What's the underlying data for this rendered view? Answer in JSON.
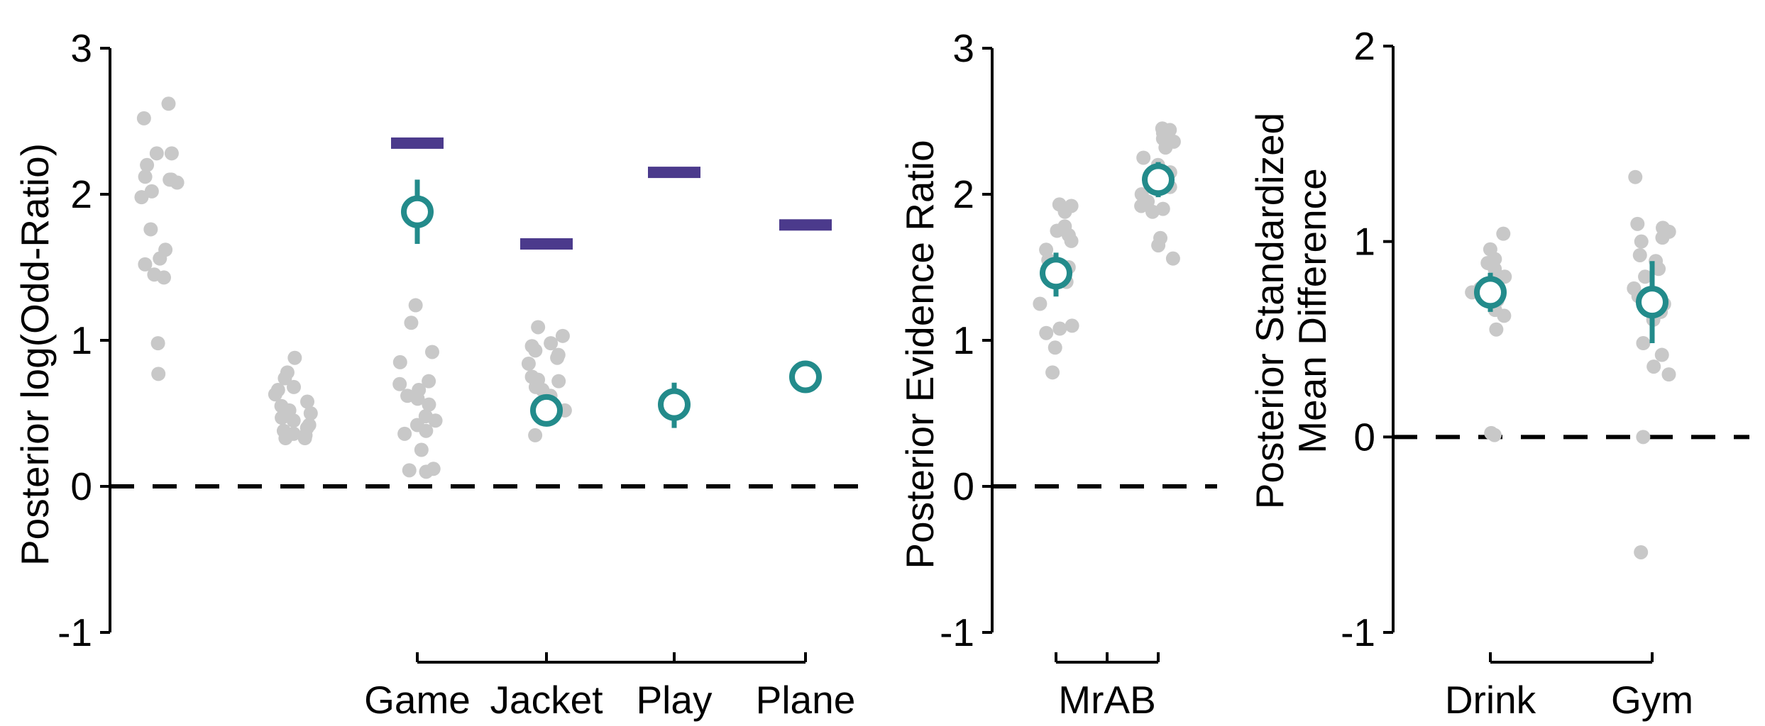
{
  "colors": {
    "individual_points": "#c8c8c8",
    "posterior_mean": "#238b8b",
    "reference_bar": "#4b3a8c",
    "zero_line": "#000000",
    "axis": "#000000"
  },
  "chart_data": [
    {
      "type": "scatter",
      "panel": "odds-ratio",
      "ylabel": "Posterior log(Odd-Ratio)",
      "ylim": [
        -1,
        3
      ],
      "yticks": [
        -1,
        0,
        1,
        2,
        3
      ],
      "ytick_labels": [
        "-1",
        "0",
        "1",
        "2",
        "3"
      ],
      "zero_line": true,
      "categories": [
        {
          "label": "",
          "points": [
            2.62,
            2.52,
            2.28,
            2.28,
            2.2,
            2.1,
            2.12,
            2.08,
            2.02,
            2.1,
            1.98,
            1.76,
            1.62,
            1.56,
            1.52,
            1.45,
            1.43,
            0.98,
            0.77
          ]
        },
        {
          "label": "",
          "points": [
            0.88,
            0.78,
            0.74,
            0.68,
            0.66,
            0.63,
            0.58,
            0.55,
            0.52,
            0.5,
            0.47,
            0.45,
            0.42,
            0.4,
            0.38,
            0.36,
            0.33,
            0.33,
            0.35
          ]
        },
        {
          "label": "Game",
          "points": [
            1.24,
            1.12,
            0.92,
            0.85,
            0.72,
            0.7,
            0.66,
            0.62,
            0.6,
            0.56,
            0.48,
            0.45,
            0.42,
            0.38,
            0.36,
            0.25,
            0.12,
            0.11,
            0.1
          ],
          "mean": 1.88,
          "ci": [
            1.66,
            2.1
          ],
          "reference": 2.35
        },
        {
          "label": "Jacket",
          "points": [
            1.09,
            1.03,
            0.98,
            0.96,
            0.93,
            0.9,
            0.88,
            0.84,
            0.75,
            0.73,
            0.72,
            0.68,
            0.66,
            0.62,
            0.58,
            0.55,
            0.52,
            0.48,
            0.35
          ],
          "mean": 0.52,
          "ci": [
            0.48,
            0.56
          ],
          "reference": 1.66
        },
        {
          "label": "Play",
          "points": [],
          "mean": 0.56,
          "ci": [
            0.4,
            0.71
          ],
          "reference": 2.15
        },
        {
          "label": "Plane",
          "points": [],
          "mean": 0.75,
          "ci": [
            0.7,
            0.8
          ],
          "reference": 1.79
        }
      ]
    },
    {
      "type": "scatter",
      "panel": "evidence-ratio",
      "ylabel": "Posterior Evidence Ratio",
      "ylim": [
        -1,
        3
      ],
      "yticks": [
        -1,
        0,
        1,
        2,
        3
      ],
      "ytick_labels": [
        "-1",
        "0",
        "1",
        "2",
        "3"
      ],
      "zero_line": true,
      "group_label": "MrAB",
      "categories": [
        {
          "label": "",
          "points": [
            1.93,
            1.92,
            1.88,
            1.78,
            1.75,
            1.72,
            1.68,
            1.62,
            1.55,
            1.5,
            1.45,
            1.4,
            1.25,
            1.1,
            1.08,
            1.05,
            0.95,
            0.78
          ],
          "mean": 1.46,
          "ci": [
            1.3,
            1.6
          ]
        },
        {
          "label": "",
          "points": [
            2.45,
            2.44,
            2.42,
            2.38,
            2.36,
            2.32,
            2.25,
            2.2,
            2.15,
            2.1,
            2.05,
            2.0,
            1.95,
            1.92,
            1.9,
            1.88,
            1.7,
            1.65,
            1.56
          ],
          "mean": 2.1,
          "ci": [
            1.98,
            2.22
          ]
        }
      ]
    },
    {
      "type": "scatter",
      "panel": "standardized-mean-difference",
      "ylabel_lines": [
        "Posterior Standardized",
        "Mean Difference"
      ],
      "ylim": [
        -1,
        2
      ],
      "yticks": [
        -1,
        0,
        1,
        2
      ],
      "ytick_labels": [
        "-1",
        "0",
        "1",
        "2"
      ],
      "zero_line": true,
      "categories": [
        {
          "label": "Drink",
          "points": [
            1.04,
            0.96,
            0.91,
            0.89,
            0.86,
            0.82,
            0.8,
            0.76,
            0.74,
            0.7,
            0.65,
            0.62,
            0.55,
            0.02,
            0.01
          ],
          "mean": 0.74,
          "ci": [
            0.64,
            0.84
          ]
        },
        {
          "label": "Gym",
          "points": [
            1.33,
            1.09,
            1.07,
            1.05,
            1.02,
            1.0,
            0.93,
            0.9,
            0.86,
            0.82,
            0.76,
            0.72,
            0.68,
            0.64,
            0.6,
            0.48,
            0.42,
            0.36,
            0.32,
            0.0,
            -0.59
          ],
          "mean": 0.69,
          "ci": [
            0.48,
            0.9
          ]
        }
      ]
    }
  ]
}
